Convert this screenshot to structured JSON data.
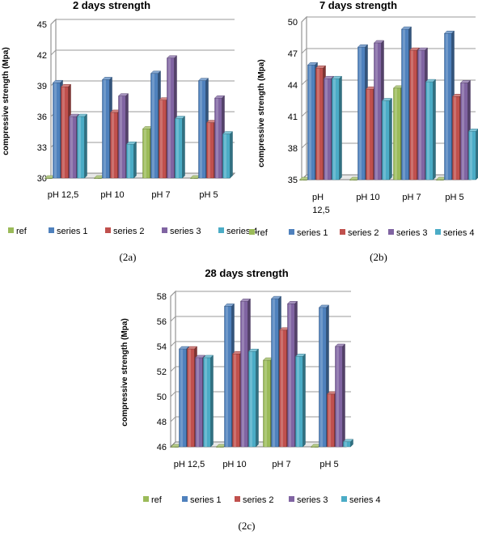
{
  "colors": {
    "ref": "#9BBB59",
    "series 1": "#4F81BD",
    "series 2": "#C0504D",
    "series 3": "#8064A2",
    "series 4": "#4BACC6",
    "grid": "#9a9a9a",
    "wall": "#7f7f7f"
  },
  "chart_data": [
    {
      "type": "bar",
      "title": "2 days strength",
      "ylabel": "compressive strength (Mpa)",
      "xlabel": "",
      "caption": "(2a)",
      "categories": [
        "pH 12,5",
        "pH 10",
        "pH 7",
        "pH 5"
      ],
      "ylim": [
        30,
        45
      ],
      "yticks": [
        "30",
        "33",
        "36",
        "39",
        "42",
        "45"
      ],
      "grid": true,
      "legend_position": "bottom",
      "series": [
        {
          "name": "ref",
          "values": [
            30,
            30,
            34.8,
            30
          ]
        },
        {
          "name": "series 1",
          "values": [
            39.3,
            39.6,
            40.2,
            39.5
          ]
        },
        {
          "name": "series 2",
          "values": [
            38.9,
            36.4,
            37.6,
            35.4
          ]
        },
        {
          "name": "series 3",
          "values": [
            36.0,
            38.0,
            41.7,
            37.8
          ]
        },
        {
          "name": "series 4",
          "values": [
            36.0,
            33.3,
            35.8,
            34.3
          ]
        }
      ]
    },
    {
      "type": "bar",
      "title": "7 days strength",
      "ylabel": "compressive strength (Mpa)",
      "xlabel": "",
      "caption": "(2b)",
      "categories": [
        "pH 12,5",
        "pH 10",
        "pH 7",
        "pH 5"
      ],
      "ylim": [
        35,
        50
      ],
      "yticks": [
        "35",
        "38",
        "41",
        "44",
        "47",
        "50"
      ],
      "grid": true,
      "legend_position": "bottom",
      "series": [
        {
          "name": "ref",
          "values": [
            35,
            35,
            43.7,
            35
          ]
        },
        {
          "name": "series 1",
          "values": [
            45.9,
            47.6,
            49.3,
            48.9
          ]
        },
        {
          "name": "series 2",
          "values": [
            45.6,
            43.6,
            47.3,
            42.9
          ]
        },
        {
          "name": "series 3",
          "values": [
            44.6,
            48.0,
            47.3,
            44.2
          ]
        },
        {
          "name": "series 4",
          "values": [
            44.6,
            42.5,
            44.3,
            39.6
          ]
        }
      ]
    },
    {
      "type": "bar",
      "title": "28 days strength",
      "ylabel": "compressive strength (Mpa)",
      "xlabel": "",
      "caption": "(2c)",
      "categories": [
        "pH 12,5",
        "pH 10",
        "pH 7",
        "pH 5"
      ],
      "ylim": [
        46,
        58
      ],
      "yticks": [
        "46",
        "48",
        "50",
        "52",
        "54",
        "56",
        "58"
      ],
      "grid": true,
      "legend_position": "bottom",
      "series": [
        {
          "name": "ref",
          "values": [
            46,
            46,
            52.9,
            46
          ]
        },
        {
          "name": "series 1",
          "values": [
            53.8,
            57.2,
            57.8,
            57.1
          ]
        },
        {
          "name": "series 2",
          "values": [
            53.8,
            53.4,
            55.3,
            50.2
          ]
        },
        {
          "name": "series 3",
          "values": [
            53.1,
            57.6,
            57.4,
            54.0
          ]
        },
        {
          "name": "series 4",
          "values": [
            53.1,
            53.6,
            53.2,
            46.4
          ]
        }
      ]
    }
  ]
}
